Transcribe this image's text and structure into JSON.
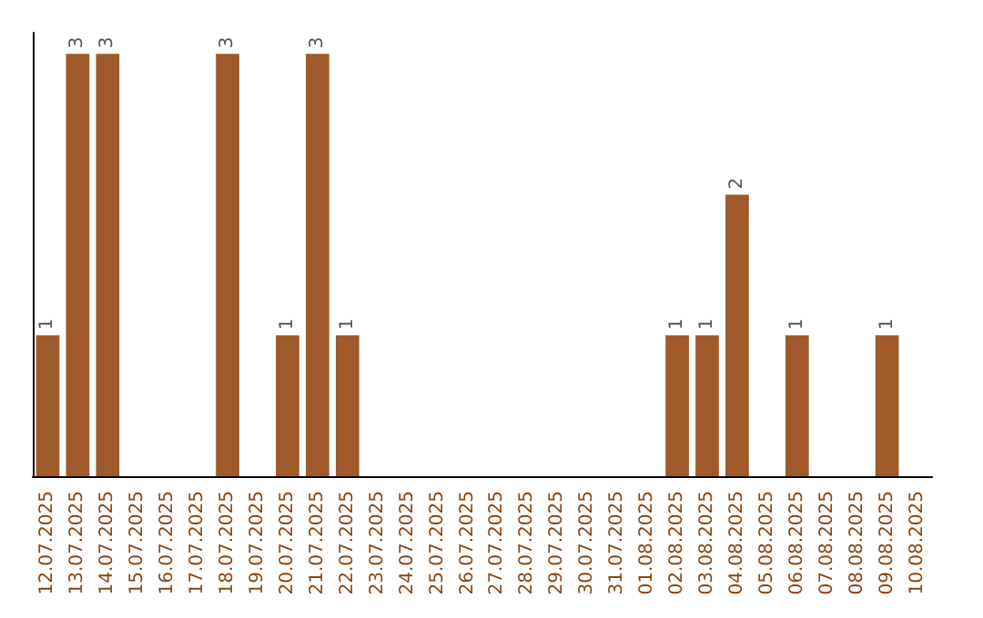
{
  "chart_data": {
    "type": "bar",
    "tick_labels": "x",
    "categories": [
      "12.07.2025",
      "13.07.2025",
      "14.07.2025",
      "15.07.2025",
      "16.07.2025",
      "17.07.2025",
      "18.07.2025",
      "19.07.2025",
      "20.07.2025",
      "21.07.2025",
      "22.07.2025",
      "23.07.2025",
      "24.07.2025",
      "25.07.2025",
      "26.07.2025",
      "27.07.2025",
      "28.07.2025",
      "29.07.2025",
      "30.07.2025",
      "31.07.2025",
      "01.08.2025",
      "02.08.2025",
      "03.08.2025",
      "04.08.2025",
      "05.08.2025",
      "06.08.2025",
      "07.08.2025",
      "08.08.2025",
      "09.08.2025",
      "10.08.2025"
    ],
    "values": [
      1,
      3,
      3,
      0,
      0,
      0,
      3,
      0,
      1,
      3,
      1,
      0,
      0,
      0,
      0,
      0,
      0,
      0,
      0,
      0,
      0,
      1,
      1,
      2,
      0,
      1,
      0,
      0,
      1,
      0
    ],
    "value_labels": [
      "1",
      "3",
      "3",
      null,
      null,
      null,
      "3",
      null,
      "1",
      "3",
      "1",
      null,
      null,
      null,
      null,
      null,
      null,
      null,
      null,
      null,
      null,
      "1",
      "1",
      "2",
      null,
      "1",
      null,
      null,
      "1",
      null
    ],
    "color": "#a0592a"
  }
}
